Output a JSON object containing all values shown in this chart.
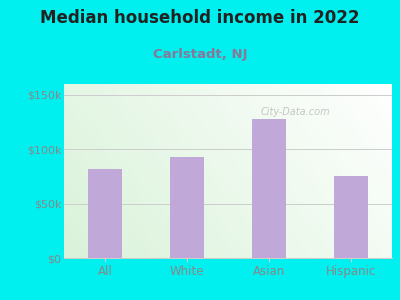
{
  "title": "Median household income in 2022",
  "subtitle": "Carlstadt, NJ",
  "categories": [
    "All",
    "White",
    "Asian",
    "Hispanic"
  ],
  "values": [
    82000,
    93000,
    128000,
    75000
  ],
  "bar_color": "#c0a8d8",
  "background_color": "#00efef",
  "plot_bg_left_top": "#b8ddb8",
  "plot_bg_right_bottom": "#f0f5f0",
  "yticks": [
    0,
    50000,
    100000,
    150000
  ],
  "ytick_labels": [
    "$0",
    "$50k",
    "$100k",
    "$150k"
  ],
  "ylim": [
    0,
    160000
  ],
  "title_fontsize": 12,
  "subtitle_fontsize": 9.5,
  "title_color": "#222222",
  "subtitle_color": "#887799",
  "tick_color": "#888888",
  "grid_color": "#cccccc",
  "watermark": "City-Data.com",
  "watermark_color": "#c0c0c0"
}
